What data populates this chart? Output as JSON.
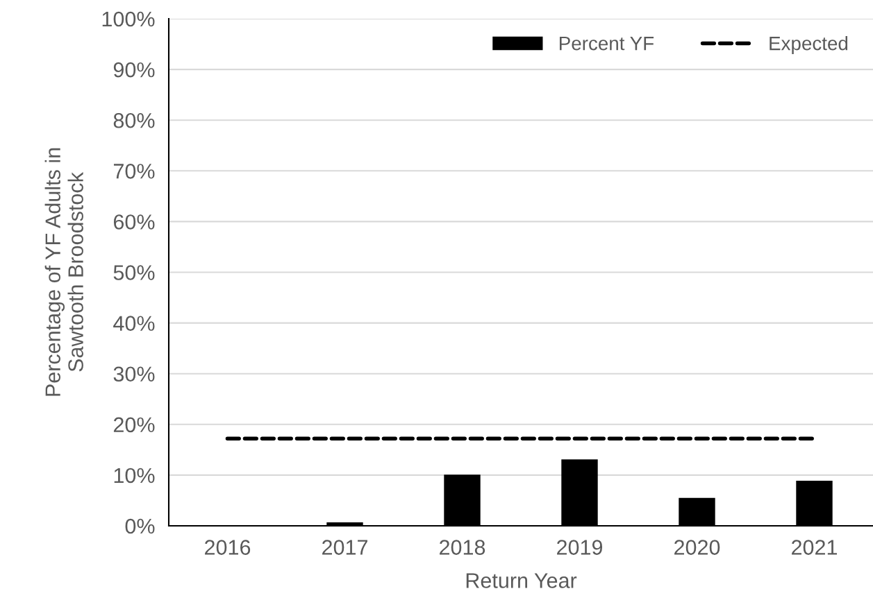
{
  "chart_data": {
    "type": "bar",
    "xlabel": "Return Year",
    "ylabel": "Percentage of YF Adults in\nSawtooth Broodstock",
    "categories": [
      "2016",
      "2017",
      "2018",
      "2019",
      "2020",
      "2021"
    ],
    "series": [
      {
        "name": "Percent YF",
        "color": "#000000",
        "values": [
          0,
          0.7,
          10.1,
          13.1,
          5.5,
          8.9
        ]
      },
      {
        "name": "Expected",
        "type": "line",
        "color": "#000000",
        "line_style": "dashed",
        "values": [
          17.2,
          17.2,
          17.2,
          17.2,
          17.2,
          17.2
        ]
      }
    ],
    "ylim": [
      0,
      100
    ],
    "yticks": [
      {
        "value": 0,
        "label": "0%"
      },
      {
        "value": 10,
        "label": "10%"
      },
      {
        "value": 20,
        "label": "20%"
      },
      {
        "value": 30,
        "label": "30%"
      },
      {
        "value": 40,
        "label": "40%"
      },
      {
        "value": 50,
        "label": "50%"
      },
      {
        "value": 60,
        "label": "60%"
      },
      {
        "value": 70,
        "label": "70%"
      },
      {
        "value": 80,
        "label": "80%"
      },
      {
        "value": 90,
        "label": "90%"
      },
      {
        "value": 100,
        "label": "100%"
      }
    ],
    "grid": "y",
    "legend": "top right"
  }
}
